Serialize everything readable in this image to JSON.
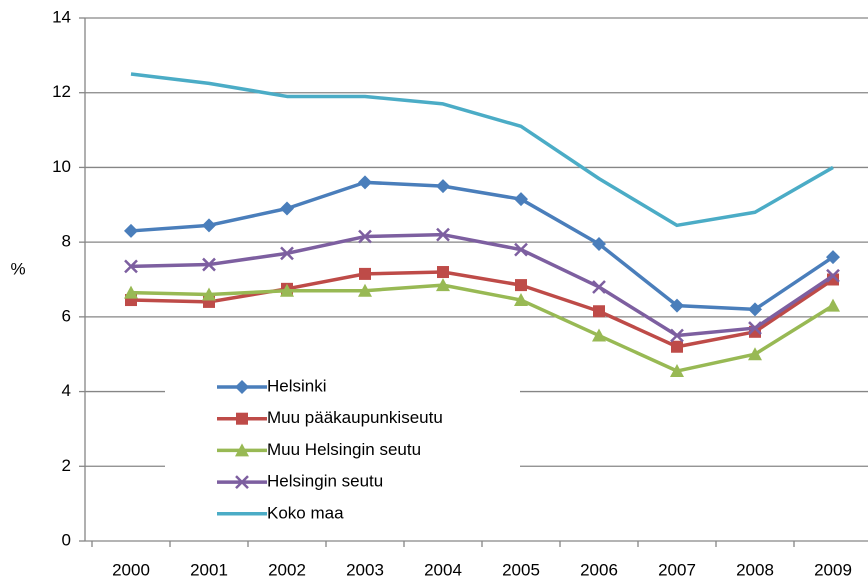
{
  "chart_data": {
    "type": "line",
    "y_label": "%",
    "categories": [
      "2000",
      "2001",
      "2002",
      "2003",
      "2004",
      "2005",
      "2006",
      "2007",
      "2008",
      "2009"
    ],
    "series": [
      {
        "name": "Helsinki",
        "color": "#4a7ebb",
        "marker": "diamond",
        "values": [
          8.3,
          8.45,
          8.9,
          9.6,
          9.5,
          9.15,
          7.95,
          6.3,
          6.2,
          7.6
        ]
      },
      {
        "name": "Muu pääkaupunkiseutu",
        "color": "#be4b48",
        "marker": "square",
        "values": [
          6.45,
          6.4,
          6.75,
          7.15,
          7.2,
          6.85,
          6.15,
          5.2,
          5.6,
          7.0
        ]
      },
      {
        "name": "Muu Helsingin seutu",
        "color": "#98b954",
        "marker": "triangle",
        "values": [
          6.65,
          6.6,
          6.7,
          6.7,
          6.85,
          6.45,
          5.5,
          4.55,
          5.0,
          6.3
        ]
      },
      {
        "name": "Helsingin seutu",
        "color": "#7d5fa0",
        "marker": "x",
        "values": [
          7.35,
          7.4,
          7.7,
          8.15,
          8.2,
          7.8,
          6.8,
          5.5,
          5.7,
          7.1
        ]
      },
      {
        "name": "Koko maa",
        "color": "#4bacc6",
        "marker": "none",
        "values": [
          12.5,
          12.25,
          11.9,
          11.9,
          11.7,
          11.1,
          9.7,
          8.45,
          8.8,
          10.0
        ]
      }
    ],
    "ylim": [
      0,
      14
    ],
    "yticks": [
      0,
      2,
      4,
      6,
      8,
      10,
      12,
      14
    ],
    "grid": true,
    "legend": "lower-left"
  }
}
